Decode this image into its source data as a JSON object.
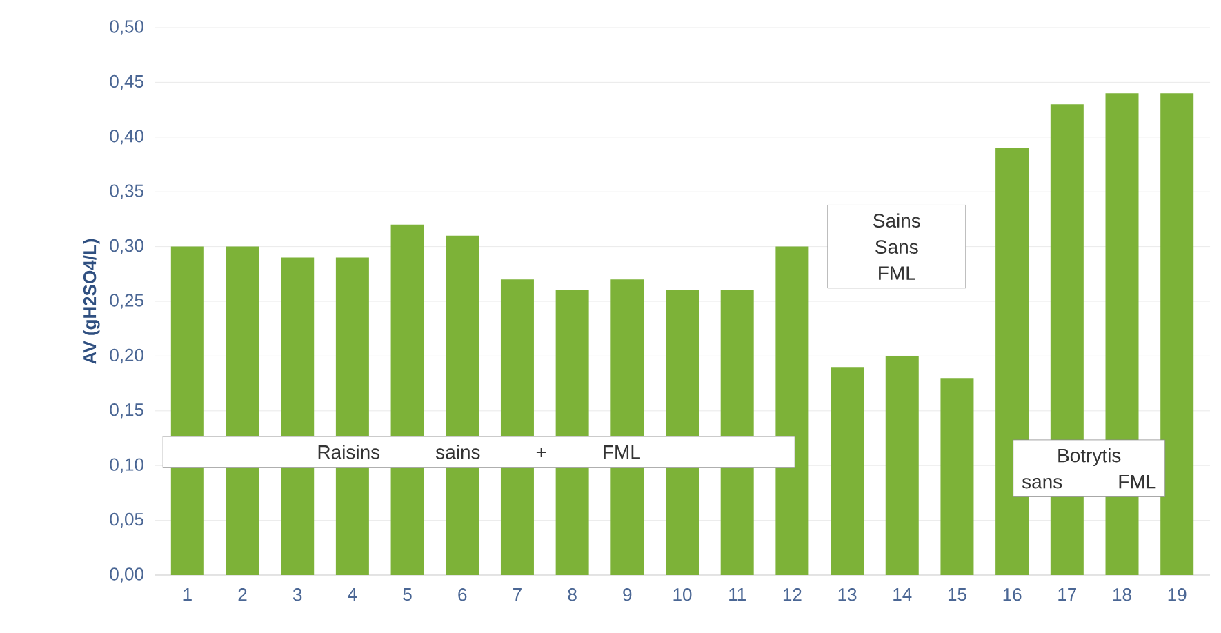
{
  "chart_data": {
    "type": "bar",
    "ylabel": "AV (gH2SO4/L)",
    "categories": [
      "1",
      "2",
      "3",
      "4",
      "5",
      "6",
      "7",
      "8",
      "9",
      "10",
      "11",
      "12",
      "13",
      "14",
      "15",
      "16",
      "17",
      "18",
      "19"
    ],
    "values": [
      0.3,
      0.3,
      0.29,
      0.29,
      0.32,
      0.31,
      0.27,
      0.26,
      0.27,
      0.26,
      0.26,
      0.3,
      0.19,
      0.2,
      0.18,
      0.39,
      0.43,
      0.44,
      0.44
    ],
    "color": "#7db238",
    "ylim": [
      0,
      0.5
    ],
    "yticks": [
      {
        "value": 0,
        "label": "0,00"
      },
      {
        "value": 0.05,
        "label": "0,05"
      },
      {
        "value": 0.1,
        "label": "0,10"
      },
      {
        "value": 0.15,
        "label": "0,15"
      },
      {
        "value": 0.2,
        "label": "0,20"
      },
      {
        "value": 0.25,
        "label": "0,25"
      },
      {
        "value": 0.3,
        "label": "0,30"
      },
      {
        "value": 0.35,
        "label": "0,35"
      },
      {
        "value": 0.4,
        "label": "0,40"
      },
      {
        "value": 0.45,
        "label": "0,45"
      },
      {
        "value": 0.5,
        "label": "0,50"
      }
    ],
    "grid": "y",
    "annotations": [
      "Raisins sains + FML",
      "Sains Sans FML",
      "Botrytis sans FML"
    ]
  }
}
